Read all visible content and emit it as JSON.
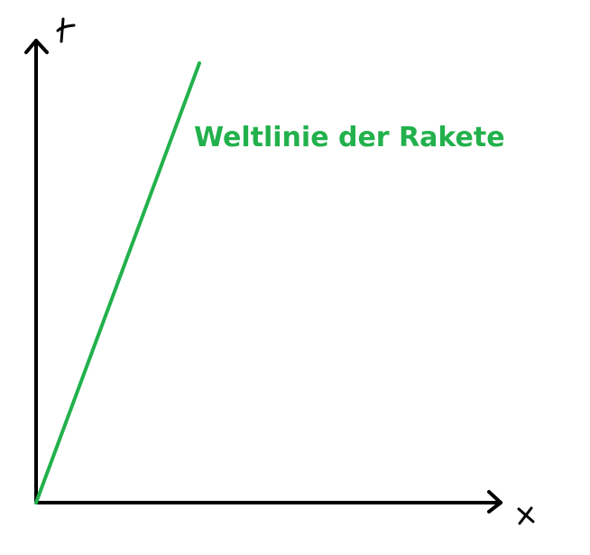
{
  "diagram": {
    "worldline_label": "Weltlinie der Rakete",
    "axis_labels": {
      "time": "t",
      "space": "x"
    },
    "colors": {
      "worldline": "#22b14c",
      "axes": "#000000",
      "background": "#ffffff"
    }
  }
}
